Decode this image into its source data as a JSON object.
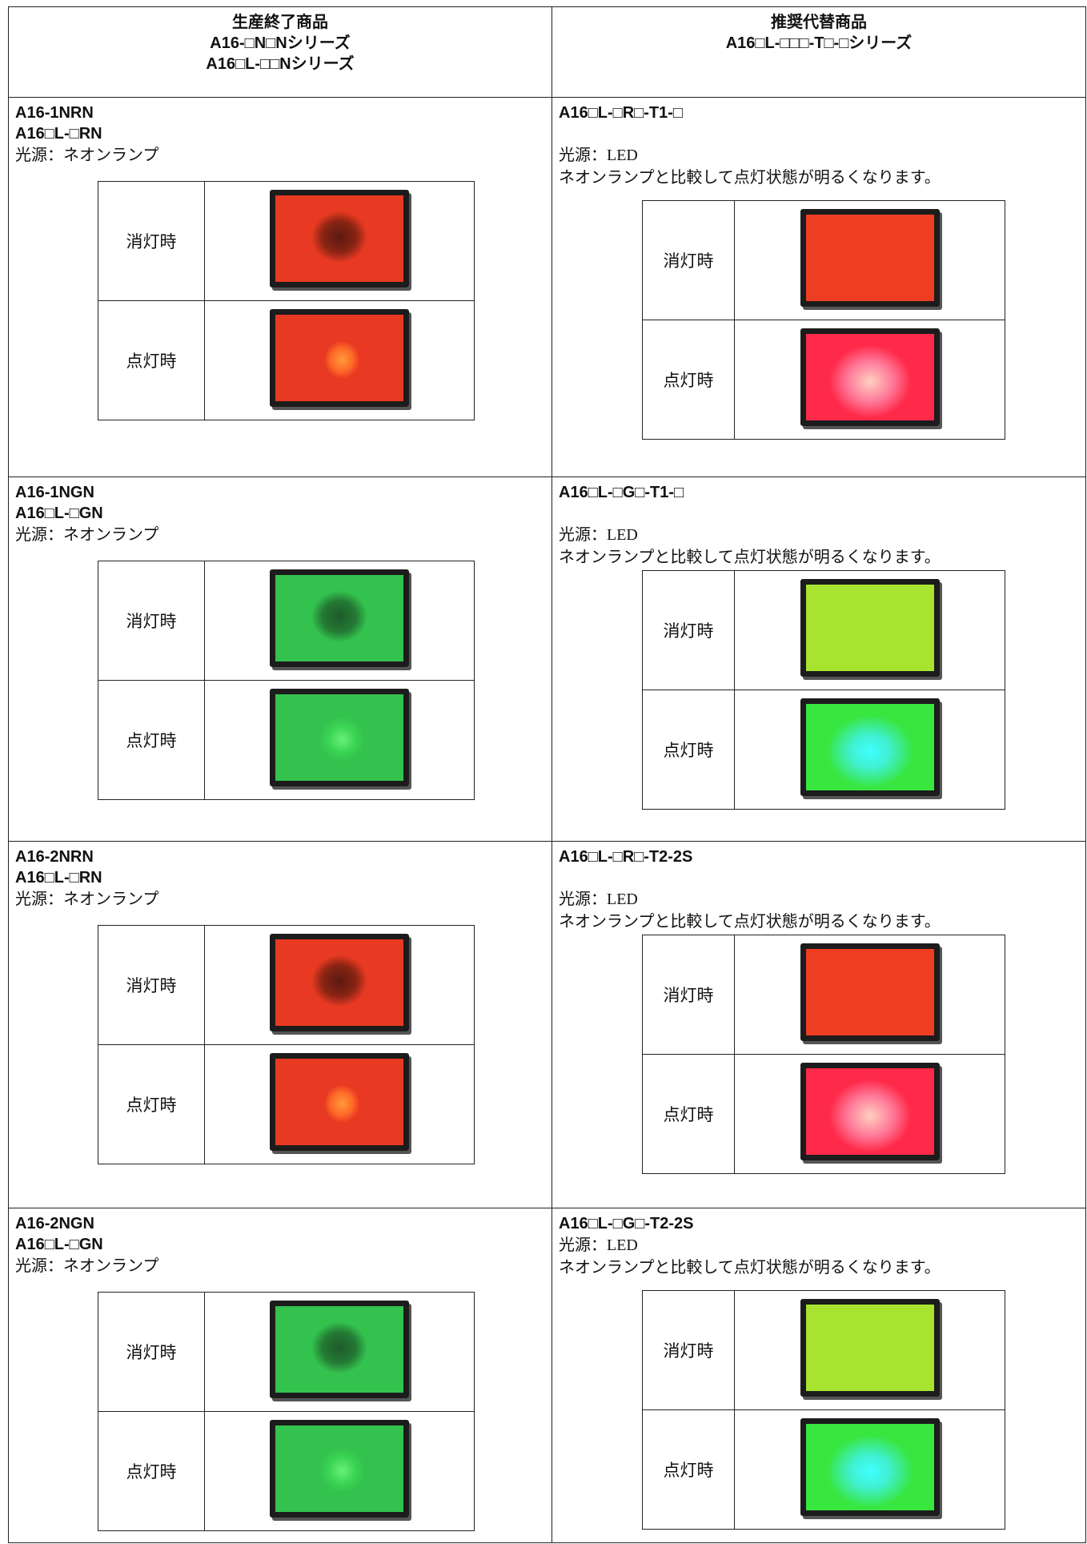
{
  "header": {
    "left": [
      "生産終了商品",
      "A16-□N□Nシリーズ",
      "A16□L-□□Nシリーズ"
    ],
    "right": [
      "推奨代替商品",
      "A16□L-□□□-T□-□シリーズ"
    ]
  },
  "rows": [
    {
      "left": {
        "models": [
          "A16-1NRN",
          "A16□L-□RN"
        ],
        "source": "光源：ネオンランプ",
        "states": [
          "消灯時",
          "点灯時"
        ]
      },
      "right": {
        "models": [
          "A16□L-□R□-T1-□"
        ],
        "source": "光源：LED",
        "note": "ネオンランプと比較して点灯状態が明るくなります。",
        "states": [
          "消灯時",
          "点灯時"
        ]
      }
    },
    {
      "left": {
        "models": [
          "A16-1NGN",
          "A16□L-□GN"
        ],
        "source": "光源：ネオンランプ",
        "states": [
          "消灯時",
          "点灯時"
        ]
      },
      "right": {
        "models": [
          "A16□L-□G□-T1-□"
        ],
        "source": "光源：LED",
        "note": "ネオンランプと比較して点灯状態が明るくなります。",
        "states": [
          "消灯時",
          "点灯時"
        ]
      }
    },
    {
      "left": {
        "models": [
          "A16-2NRN",
          "A16□L-□RN"
        ],
        "source": "光源：ネオンランプ",
        "states": [
          "消灯時",
          "点灯時"
        ]
      },
      "right": {
        "models": [
          "A16□L-□R□-T2-2S"
        ],
        "source": "光源：LED",
        "note": "ネオンランプと比較して点灯状態が明るくなります。",
        "states": [
          "消灯時",
          "点灯時"
        ]
      }
    },
    {
      "left": {
        "models": [
          "A16-2NGN",
          "A16□L-□GN"
        ],
        "source": "光源：ネオンランプ",
        "states": [
          "消灯時",
          "点灯時"
        ]
      },
      "right": {
        "models": [
          "A16□L-□G□-T2-2S"
        ],
        "source": "光源：LED",
        "note": "ネオンランプと比較して点灯状態が明るくなります。",
        "states": [
          "消灯時",
          "点灯時"
        ]
      }
    }
  ]
}
